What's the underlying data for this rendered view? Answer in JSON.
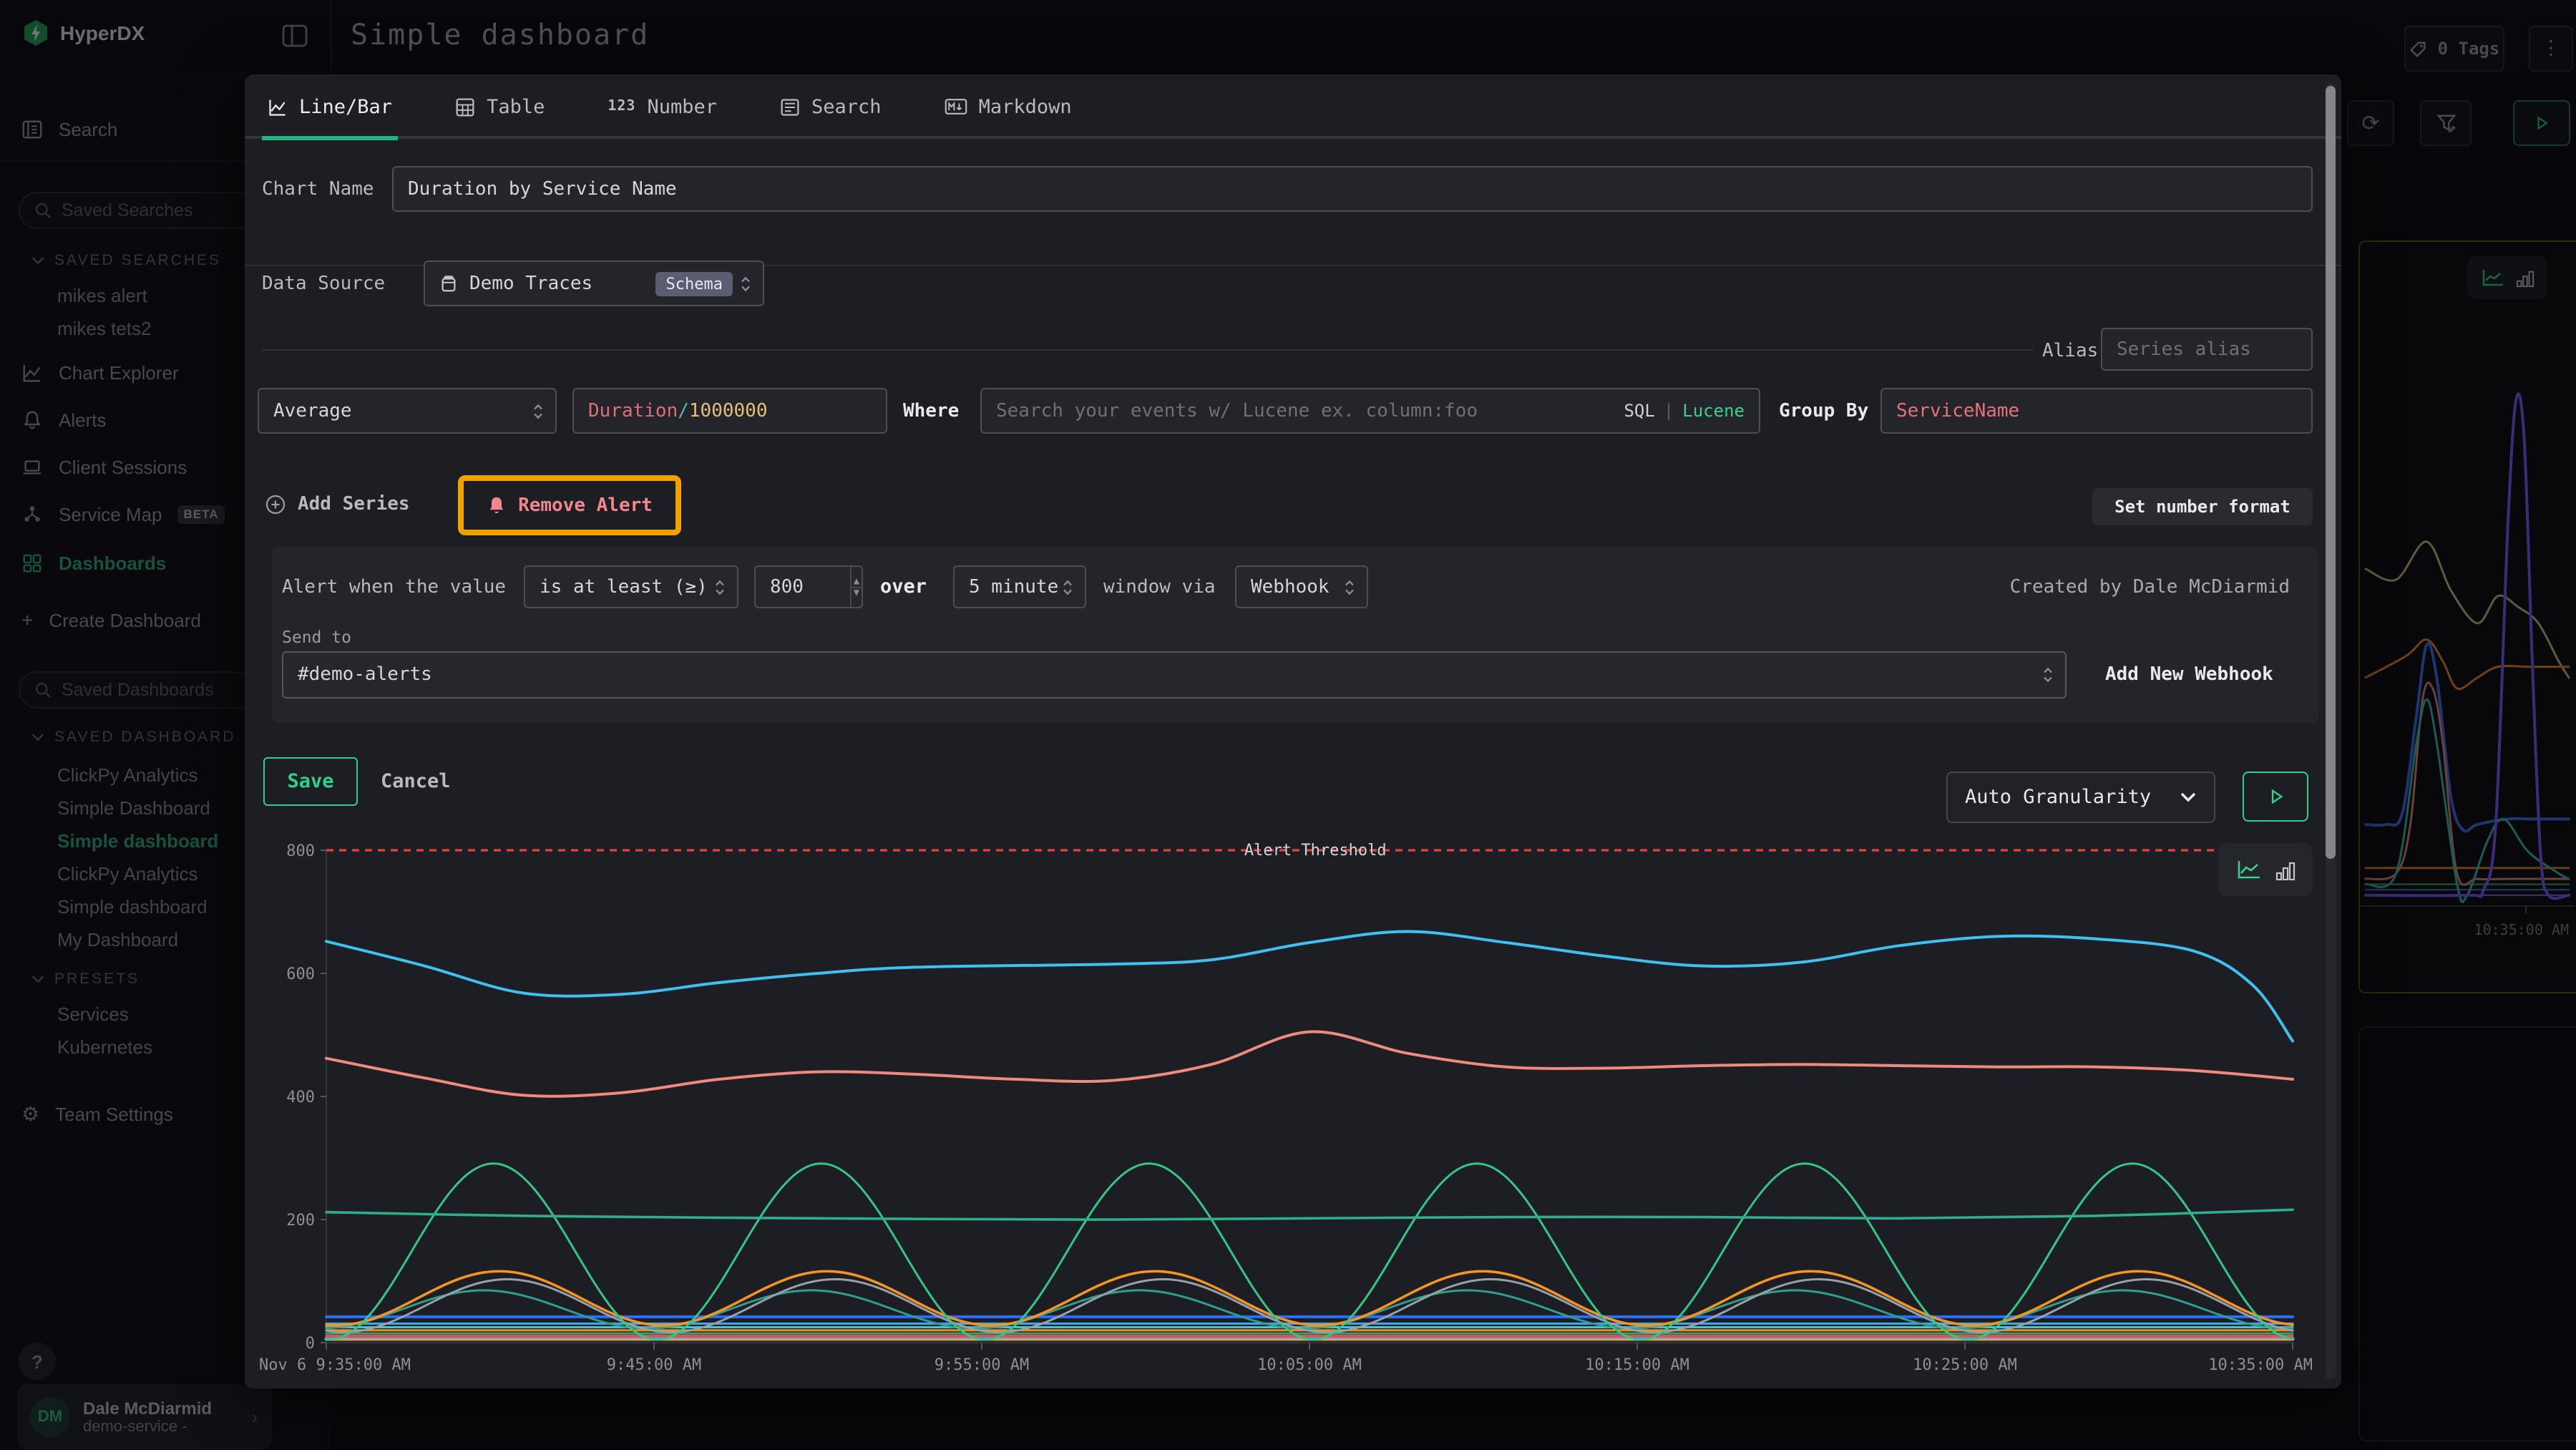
{
  "header": {
    "brand": "HyperDX",
    "title": "Simple dashboard",
    "tags_button": "0 Tags"
  },
  "sidebar": {
    "search_item": "Search",
    "saved_searches_placeholder": "Saved Searches",
    "saved_searches_header": "SAVED SEARCHES",
    "saved_search_items": [
      "mikes alert",
      "mikes tets2"
    ],
    "nav": [
      {
        "label": "Chart Explorer"
      },
      {
        "label": "Alerts"
      },
      {
        "label": "Client Sessions"
      },
      {
        "label": "Service Map",
        "badge": "BETA"
      },
      {
        "label": "Dashboards"
      }
    ],
    "create_dashboard": "Create Dashboard",
    "saved_dashboards_placeholder": "Saved Dashboards",
    "saved_dashboards_header": "SAVED DASHBOARD",
    "dashboards": [
      "ClickPy Analytics",
      "Simple Dashboard",
      "Simple dashboard",
      "ClickPy Analytics",
      "Simple dashboard",
      "My Dashboard"
    ],
    "presets_header": "PRESETS",
    "presets": [
      "Services",
      "Kubernetes"
    ],
    "team_settings": "Team Settings",
    "help": "?",
    "user": {
      "initials": "DM",
      "name": "Dale McDiarmid",
      "org": "demo-service -"
    }
  },
  "modal": {
    "tabs": [
      {
        "label": "Line/Bar"
      },
      {
        "label": "Table"
      },
      {
        "label": "Number"
      },
      {
        "label": "Search"
      },
      {
        "label": "Markdown"
      }
    ],
    "chart_name_label": "Chart Name",
    "chart_name_value": "Duration by Service Name",
    "data_source_label": "Data Source",
    "data_source_value": "Demo Traces",
    "schema_badge": "Schema",
    "alias_label": "Alias",
    "alias_placeholder": "Series alias",
    "aggregation": "Average",
    "field_expr": {
      "field": "Duration",
      "slash": "/",
      "divisor": "1000000"
    },
    "where_label": "Where",
    "where_placeholder": "Search your events w/ Lucene ex. column:foo",
    "lang_toggle": {
      "sql": "SQL",
      "sep": "|",
      "lucene": "Lucene"
    },
    "group_by_label": "Group By",
    "group_by_value": "ServiceName",
    "add_series": "Add Series",
    "remove_alert": "Remove Alert",
    "set_number_format": "Set number format",
    "alert": {
      "prefix": "Alert when the value",
      "condition": "is at least (≥)",
      "threshold_value": "800",
      "over": "over",
      "window": "5 minute",
      "via": "window via",
      "channel_type": "Webhook",
      "created_by": "Created by Dale McDiarmid",
      "send_to_label": "Send to",
      "webhook": "#demo-alerts",
      "add_new_webhook": "Add New Webhook"
    },
    "save": "Save",
    "cancel": "Cancel",
    "granularity": "Auto Granularity"
  },
  "colors": {
    "accent": "#2fd08a",
    "threshold": "#e5423c",
    "highlight": "#f0a202",
    "field_pink": "#e06c75",
    "field_gold": "#e5c07b",
    "field_cyan": "#56b6c2",
    "lucene_green": "#3ecf8e"
  },
  "chart_data": [
    {
      "id": "main",
      "type": "line",
      "ylim": [
        0,
        800
      ],
      "yticks": [
        0,
        200,
        400,
        600,
        800
      ],
      "xticks": [
        "Nov 6 9:35:00 AM",
        "9:45:00 AM",
        "9:55:00 AM",
        "10:05:00 AM",
        "10:15:00 AM",
        "10:25:00 AM",
        "10:35:00 AM"
      ],
      "grid": false,
      "legend": "none",
      "threshold": {
        "value": 800,
        "label": "Alert Threshold",
        "color": "#e5423c"
      },
      "series": [
        {
          "name": "flat-gold",
          "color": "#c9a55f",
          "width": 2.5,
          "value": 6
        },
        {
          "name": "flat-purple",
          "color": "#8e6ae8",
          "width": 1.5,
          "value": 9
        },
        {
          "name": "flat-red",
          "color": "#d95454",
          "width": 1.5,
          "value": 11
        },
        {
          "name": "flat-green",
          "color": "#43a05a",
          "width": 1.5,
          "value": 15
        },
        {
          "name": "flat-orange",
          "color": "#f58c1f",
          "width": 1.5,
          "value": 20
        },
        {
          "name": "flat-cyan",
          "color": "#45c5d6",
          "width": 1.5,
          "value": 25
        },
        {
          "name": "flat-lightblue",
          "color": "#38b0ef",
          "width": 1.5,
          "value": 31
        },
        {
          "name": "flat-blue",
          "color": "#2f6df6",
          "width": 2,
          "value": 42
        },
        {
          "name": "teal-wave",
          "color": "#2e9e8f",
          "width": 1.5,
          "wave": {
            "base": 54,
            "amp": 31,
            "period": 0.1667,
            "peak_x": 0.08,
            "peak": 85,
            "trough": 23
          }
        },
        {
          "name": "gray-wave",
          "color": "#98a0a8",
          "width": 1.5,
          "wave": {
            "base": 60,
            "amp": 43,
            "period": 0.1667,
            "peak_x": 0.092,
            "peak": 103,
            "trough": 17
          }
        },
        {
          "name": "orange-wave",
          "color": "#f59425",
          "width": 1.8,
          "wave": {
            "base": 72,
            "amp": 44,
            "period": 0.1667,
            "peak_x": 0.088,
            "peak": 116,
            "trough": 28
          }
        },
        {
          "name": "green-wave",
          "color": "#35c585",
          "width": 1.5,
          "wave": {
            "base": 148,
            "amp": 143,
            "period": 0.1667,
            "peak_x": 0.085,
            "peak": 291,
            "trough": 5
          }
        },
        {
          "name": "teal-flat",
          "color": "#2fae8f",
          "width": 1.8,
          "points": [
            [
              0,
              212
            ],
            [
              0.1,
              206
            ],
            [
              0.2,
              203
            ],
            [
              0.3,
              201
            ],
            [
              0.4,
              200
            ],
            [
              0.5,
              202
            ],
            [
              0.6,
              204
            ],
            [
              0.7,
              204
            ],
            [
              0.8,
              202
            ],
            [
              0.9,
              206
            ],
            [
              1,
              216
            ]
          ]
        },
        {
          "name": "salmon",
          "color": "#ef8a7e",
          "width": 2,
          "points": [
            [
              0,
              462
            ],
            [
              0.05,
              430
            ],
            [
              0.1,
              402
            ],
            [
              0.15,
              406
            ],
            [
              0.2,
              428
            ],
            [
              0.25,
              440
            ],
            [
              0.3,
              436
            ],
            [
              0.35,
              428
            ],
            [
              0.4,
              426
            ],
            [
              0.45,
              452
            ],
            [
              0.5,
              505
            ],
            [
              0.55,
              470
            ],
            [
              0.6,
              448
            ],
            [
              0.65,
              446
            ],
            [
              0.7,
              450
            ],
            [
              0.75,
              452
            ],
            [
              0.8,
              450
            ],
            [
              0.85,
              448
            ],
            [
              0.9,
              448
            ],
            [
              0.95,
              442
            ],
            [
              1,
              428
            ]
          ]
        },
        {
          "name": "sky-blue",
          "color": "#41c0f0",
          "width": 2,
          "points": [
            [
              0,
              652
            ],
            [
              0.05,
              612
            ],
            [
              0.1,
              568
            ],
            [
              0.15,
              566
            ],
            [
              0.2,
              585
            ],
            [
              0.25,
              600
            ],
            [
              0.3,
              610
            ],
            [
              0.4,
              615
            ],
            [
              0.45,
              622
            ],
            [
              0.5,
              650
            ],
            [
              0.55,
              668
            ],
            [
              0.6,
              650
            ],
            [
              0.65,
              628
            ],
            [
              0.7,
              612
            ],
            [
              0.75,
              618
            ],
            [
              0.8,
              645
            ],
            [
              0.85,
              660
            ],
            [
              0.9,
              656
            ],
            [
              0.95,
              636
            ],
            [
              0.98,
              580
            ],
            [
              1,
              490
            ]
          ]
        }
      ]
    },
    {
      "id": "background-mini",
      "type": "line",
      "ylim": [
        0,
        100
      ],
      "xticks": [
        "10:35:00 AM"
      ],
      "series": [
        {
          "name": "flat-purple",
          "color": "#7a5ad0",
          "width": 1.2,
          "value": 2
        },
        {
          "name": "flat-blue",
          "color": "#3868c8",
          "width": 1.2,
          "value": 3
        },
        {
          "name": "flat-green",
          "color": "#3c9e60",
          "width": 1.2,
          "value": 4
        },
        {
          "name": "flat-orange",
          "color": "#d9822b",
          "width": 1.5,
          "value": 7
        },
        {
          "name": "khaki",
          "color": "#cfc07a",
          "width": 1.5,
          "points": [
            [
              0,
              62
            ],
            [
              0.15,
              60
            ],
            [
              0.3,
              67
            ],
            [
              0.42,
              58
            ],
            [
              0.55,
              52
            ],
            [
              0.65,
              57
            ],
            [
              0.75,
              55
            ],
            [
              0.85,
              52
            ],
            [
              0.95,
              45
            ],
            [
              1,
              42
            ]
          ]
        },
        {
          "name": "orange",
          "color": "#e8872e",
          "width": 1.5,
          "points": [
            [
              0,
              42
            ],
            [
              0.2,
              46
            ],
            [
              0.3,
              49
            ],
            [
              0.38,
              45
            ],
            [
              0.45,
              40
            ],
            [
              0.55,
              42
            ],
            [
              0.65,
              44
            ],
            [
              0.8,
              44
            ],
            [
              1,
              44
            ]
          ]
        },
        {
          "name": "blue-bump",
          "color": "#3a6ff2",
          "width": 2,
          "points": [
            [
              0,
              15
            ],
            [
              0.1,
              15
            ],
            [
              0.18,
              17
            ],
            [
              0.25,
              35
            ],
            [
              0.3,
              48
            ],
            [
              0.35,
              42
            ],
            [
              0.42,
              20
            ],
            [
              0.48,
              14
            ],
            [
              0.55,
              15
            ],
            [
              0.7,
              16
            ],
            [
              0.85,
              16
            ],
            [
              1,
              16
            ]
          ]
        },
        {
          "name": "rose-bump",
          "color": "#e08a80",
          "width": 1.5,
          "points": [
            [
              0,
              5
            ],
            [
              0.15,
              6
            ],
            [
              0.22,
              15
            ],
            [
              0.28,
              38
            ],
            [
              0.33,
              40
            ],
            [
              0.38,
              30
            ],
            [
              0.45,
              6
            ],
            [
              0.55,
              5
            ],
            [
              0.7,
              5
            ],
            [
              1,
              5
            ]
          ]
        },
        {
          "name": "teal-bump",
          "color": "#36c2b2",
          "width": 1.5,
          "points": [
            [
              0,
              4
            ],
            [
              0.15,
              6
            ],
            [
              0.25,
              30
            ],
            [
              0.3,
              38
            ],
            [
              0.35,
              30
            ],
            [
              0.45,
              4
            ],
            [
              0.5,
              2
            ],
            [
              0.6,
              12
            ],
            [
              0.68,
              16
            ],
            [
              0.8,
              10
            ],
            [
              0.95,
              6
            ],
            [
              1,
              5
            ]
          ]
        },
        {
          "name": "purple-spike",
          "color": "#7c5cff",
          "width": 2,
          "points": [
            [
              0,
              2
            ],
            [
              0.5,
              2
            ],
            [
              0.58,
              3
            ],
            [
              0.64,
              15
            ],
            [
              0.7,
              70
            ],
            [
              0.74,
              93
            ],
            [
              0.78,
              86
            ],
            [
              0.82,
              45
            ],
            [
              0.86,
              10
            ],
            [
              0.9,
              2
            ],
            [
              1,
              2
            ]
          ]
        }
      ]
    }
  ]
}
